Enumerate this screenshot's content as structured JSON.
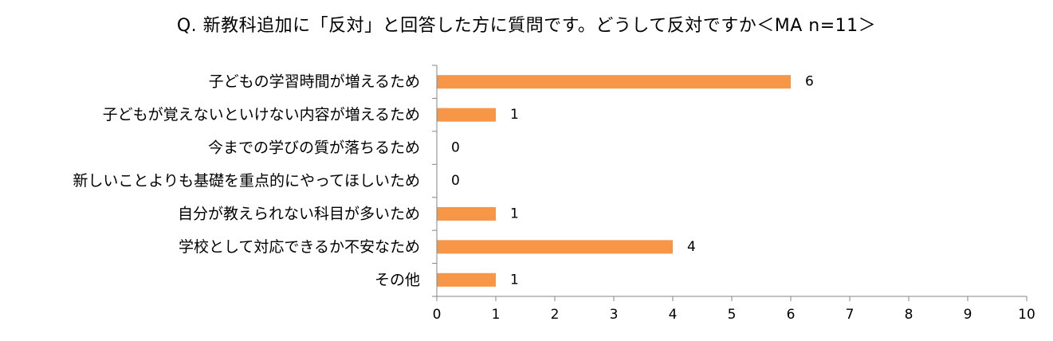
{
  "chart_data": {
    "type": "bar",
    "orientation": "horizontal",
    "title": "Q. 新教科追加に「反対」と回答した方に質問です。どうして反対ですか＜MA n=11＞",
    "categories": [
      "子どもの学習時間が増えるため",
      "子どもが覚えないといけない内容が増えるため",
      "今までの学びの質が落ちるため",
      "新しいことよりも基礎を重点的にやってほしいため",
      "自分が教えられない科目が多いため",
      "学校として対応できるか不安なため",
      "その他"
    ],
    "values": [
      6,
      1,
      0,
      0,
      1,
      4,
      1
    ],
    "xlim": [
      0,
      10
    ],
    "xticks": [
      0,
      1,
      2,
      3,
      4,
      5,
      6,
      7,
      8,
      9,
      10
    ],
    "grid": false,
    "legend": "none",
    "bar_color": "#f79646"
  }
}
